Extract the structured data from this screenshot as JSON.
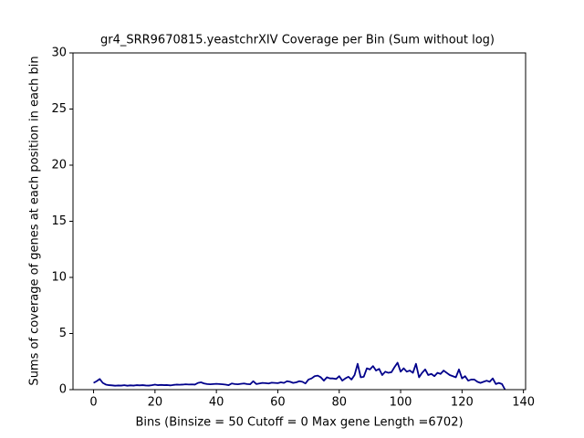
{
  "chart_data": {
    "type": "line",
    "title": "gr4_SRR9670815.yeastchrXIV Coverage per Bin (Sum without log)",
    "x_label": "Bins  (Binsize = 50 Cutoff = 0 Max gene Length =6702)",
    "y_label": "Sums of coverage of genes at each position in each bin",
    "x": [
      0,
      1,
      2,
      3,
      4,
      5,
      6,
      7,
      8,
      9,
      10,
      11,
      12,
      13,
      14,
      15,
      16,
      17,
      18,
      19,
      20,
      21,
      22,
      23,
      24,
      25,
      26,
      27,
      28,
      29,
      30,
      31,
      32,
      33,
      34,
      35,
      36,
      37,
      38,
      39,
      40,
      41,
      42,
      43,
      44,
      45,
      46,
      47,
      48,
      49,
      50,
      51,
      52,
      53,
      54,
      55,
      56,
      57,
      58,
      59,
      60,
      61,
      62,
      63,
      64,
      65,
      66,
      67,
      68,
      69,
      70,
      71,
      72,
      73,
      74,
      75,
      76,
      77,
      78,
      79,
      80,
      81,
      82,
      83,
      84,
      85,
      86,
      87,
      88,
      89,
      90,
      91,
      92,
      93,
      94,
      95,
      96,
      97,
      98,
      99,
      100,
      101,
      102,
      103,
      104,
      105,
      106,
      107,
      108,
      109,
      110,
      111,
      112,
      113,
      114,
      115,
      116,
      117,
      118,
      119,
      120,
      121,
      122,
      123,
      124,
      125,
      126,
      127,
      128,
      129,
      130,
      131,
      132,
      133,
      134
    ],
    "series": [
      {
        "color": "#00008b",
        "values": [
          0.6,
          0.75,
          0.95,
          0.6,
          0.45,
          0.4,
          0.38,
          0.35,
          0.37,
          0.36,
          0.4,
          0.35,
          0.38,
          0.36,
          0.4,
          0.38,
          0.4,
          0.37,
          0.36,
          0.4,
          0.45,
          0.4,
          0.42,
          0.4,
          0.41,
          0.38,
          0.42,
          0.45,
          0.44,
          0.45,
          0.48,
          0.46,
          0.47,
          0.45,
          0.6,
          0.65,
          0.55,
          0.5,
          0.48,
          0.5,
          0.52,
          0.5,
          0.48,
          0.45,
          0.4,
          0.55,
          0.5,
          0.48,
          0.52,
          0.55,
          0.5,
          0.48,
          0.75,
          0.5,
          0.55,
          0.6,
          0.58,
          0.55,
          0.62,
          0.6,
          0.58,
          0.65,
          0.6,
          0.75,
          0.7,
          0.6,
          0.65,
          0.75,
          0.7,
          0.55,
          0.9,
          1.0,
          1.2,
          1.25,
          1.1,
          0.8,
          1.1,
          1.0,
          1.0,
          0.95,
          1.2,
          0.8,
          1.0,
          1.15,
          0.9,
          1.3,
          2.3,
          1.1,
          1.15,
          1.9,
          1.8,
          2.1,
          1.7,
          1.85,
          1.3,
          1.6,
          1.5,
          1.55,
          2.0,
          2.4,
          1.6,
          1.9,
          1.6,
          1.7,
          1.5,
          2.3,
          1.1,
          1.5,
          1.8,
          1.3,
          1.4,
          1.2,
          1.5,
          1.4,
          1.7,
          1.5,
          1.3,
          1.2,
          1.1,
          1.8,
          1.0,
          1.2,
          0.8,
          0.9,
          0.9,
          0.7,
          0.6,
          0.7,
          0.8,
          0.7,
          1.0,
          0.5,
          0.6,
          0.5,
          0.0
        ]
      }
    ],
    "xlim": [
      -6.7,
      140.7
    ],
    "xticks": [
      0,
      20,
      40,
      60,
      80,
      100,
      120,
      140
    ],
    "ylim": [
      0,
      30
    ],
    "yticks": [
      0,
      5,
      10,
      15,
      20,
      25,
      30
    ]
  }
}
